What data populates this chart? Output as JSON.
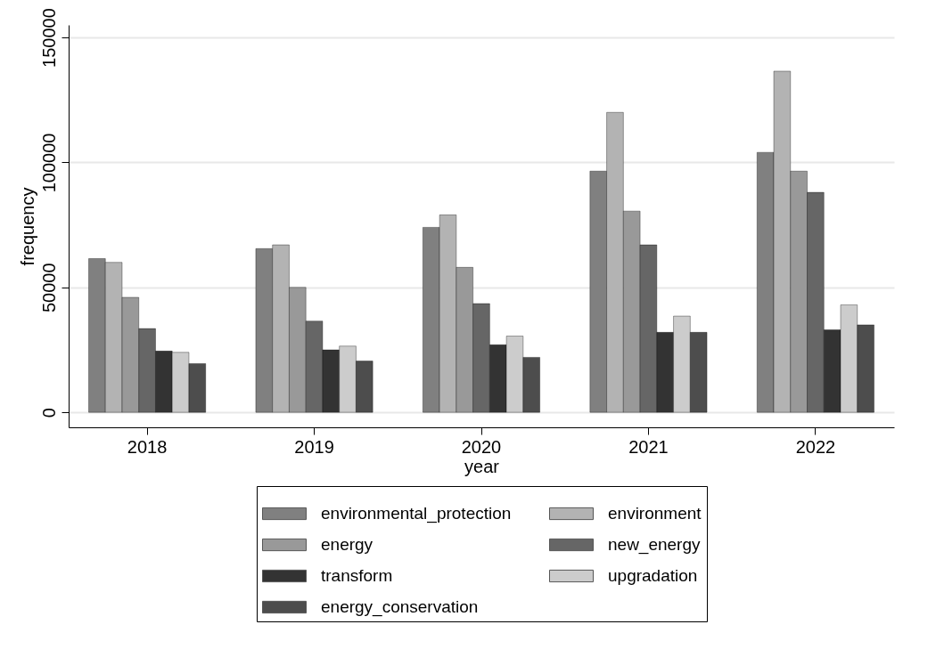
{
  "chart_data": {
    "type": "bar",
    "xlabel": "year",
    "ylabel": "frequency",
    "categories": [
      "2018",
      "2019",
      "2020",
      "2021",
      "2022"
    ],
    "series": [
      {
        "name": "environmental_protection",
        "color": "#808080",
        "values": [
          61500,
          65500,
          74000,
          96500,
          104000
        ]
      },
      {
        "name": "environment",
        "color": "#b3b3b3",
        "values": [
          60000,
          67000,
          79000,
          120000,
          136500
        ]
      },
      {
        "name": "energy",
        "color": "#999999",
        "values": [
          46000,
          50000,
          58000,
          80500,
          96500
        ]
      },
      {
        "name": "new_energy",
        "color": "#666666",
        "values": [
          33500,
          36500,
          43500,
          67000,
          88000
        ]
      },
      {
        "name": "transform",
        "color": "#333333",
        "values": [
          24500,
          25000,
          27000,
          32000,
          33000
        ]
      },
      {
        "name": "upgradation",
        "color": "#cccccc",
        "values": [
          24000,
          26500,
          30500,
          38500,
          43000
        ]
      },
      {
        "name": "energy_conservation",
        "color": "#4d4d4d",
        "values": [
          19500,
          20500,
          22000,
          32000,
          35000
        ]
      }
    ],
    "ylim": [
      -6000,
      155000
    ],
    "yticks": [
      0,
      50000,
      100000,
      150000
    ],
    "grid": "y",
    "legend": "bottom"
  }
}
